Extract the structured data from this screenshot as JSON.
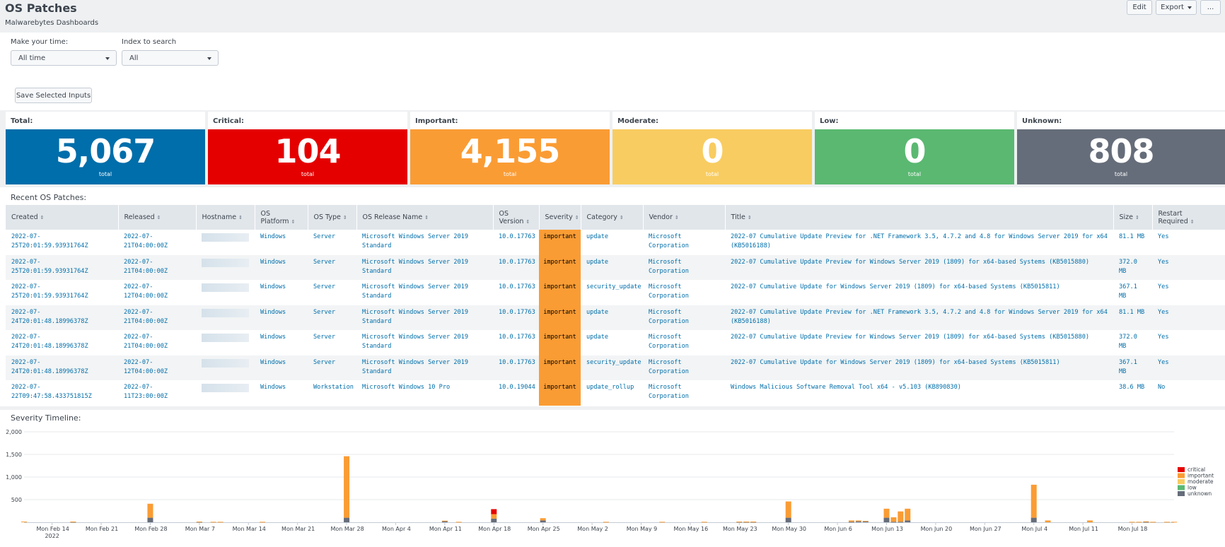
{
  "header": {
    "title": "OS Patches",
    "subtitle": "Malwarebytes Dashboards",
    "edit_label": "Edit",
    "export_label": "Export",
    "more_label": "..."
  },
  "inputs": {
    "time_label": "Make your time:",
    "time_value": "All time",
    "index_label": "Index to search",
    "index_value": "All",
    "save_label": "Save Selected Inputs"
  },
  "singles": [
    {
      "label": "Total:",
      "value": "5,067",
      "unit": "total",
      "color": "#006eaa"
    },
    {
      "label": "Critical:",
      "value": "104",
      "unit": "total",
      "color": "#e50000"
    },
    {
      "label": "Important:",
      "value": "4,155",
      "unit": "total",
      "color": "#fa9c34"
    },
    {
      "label": "Moderate:",
      "value": "0",
      "unit": "total",
      "color": "#f8cc60"
    },
    {
      "label": "Low:",
      "value": "0",
      "unit": "total",
      "color": "#5ab871"
    },
    {
      "label": "Unknown:",
      "value": "808",
      "unit": "total",
      "color": "#666d7a"
    }
  ],
  "table": {
    "title": "Recent OS Patches:",
    "columns": [
      "Created",
      "Released",
      "Hostname",
      "OS Platform",
      "OS Type",
      "OS Release Name",
      "OS Version",
      "Severity",
      "Category",
      "Vendor",
      "Title",
      "Size",
      "Restart Required"
    ],
    "rows": [
      {
        "created": "2022-07-25T20:01:59.93931764Z",
        "released": "2022-07-21T04:00:00Z",
        "platform": "Windows",
        "type": "Server",
        "release_name": "Microsoft Windows Server 2019 Standard",
        "version": "10.0.17763",
        "severity": "important",
        "category": "update",
        "vendor": "Microsoft Corporation",
        "title": "2022-07 Cumulative Update Preview for .NET Framework 3.5, 4.7.2 and 4.8 for Windows Server 2019 for x64 (KB5016188)",
        "size": "81.1 MB",
        "restart": "Yes"
      },
      {
        "created": "2022-07-25T20:01:59.93931764Z",
        "released": "2022-07-21T04:00:00Z",
        "platform": "Windows",
        "type": "Server",
        "release_name": "Microsoft Windows Server 2019 Standard",
        "version": "10.0.17763",
        "severity": "important",
        "category": "update",
        "vendor": "Microsoft Corporation",
        "title": "2022-07 Cumulative Update Preview for Windows Server 2019 (1809) for x64-based Systems (KB5015880)",
        "size": "372.0 MB",
        "restart": "Yes"
      },
      {
        "created": "2022-07-25T20:01:59.93931764Z",
        "released": "2022-07-12T04:00:00Z",
        "platform": "Windows",
        "type": "Server",
        "release_name": "Microsoft Windows Server 2019 Standard",
        "version": "10.0.17763",
        "severity": "important",
        "category": "security_update",
        "vendor": "Microsoft Corporation",
        "title": "2022-07 Cumulative Update for Windows Server 2019 (1809) for x64-based Systems (KB5015811)",
        "size": "367.1 MB",
        "restart": "Yes"
      },
      {
        "created": "2022-07-24T20:01:48.18996378Z",
        "released": "2022-07-21T04:00:00Z",
        "platform": "Windows",
        "type": "Server",
        "release_name": "Microsoft Windows Server 2019 Standard",
        "version": "10.0.17763",
        "severity": "important",
        "category": "update",
        "vendor": "Microsoft Corporation",
        "title": "2022-07 Cumulative Update Preview for .NET Framework 3.5, 4.7.2 and 4.8 for Windows Server 2019 for x64 (KB5016188)",
        "size": "81.1 MB",
        "restart": "Yes"
      },
      {
        "created": "2022-07-24T20:01:48.18996378Z",
        "released": "2022-07-21T04:00:00Z",
        "platform": "Windows",
        "type": "Server",
        "release_name": "Microsoft Windows Server 2019 Standard",
        "version": "10.0.17763",
        "severity": "important",
        "category": "update",
        "vendor": "Microsoft Corporation",
        "title": "2022-07 Cumulative Update Preview for Windows Server 2019 (1809) for x64-based Systems (KB5015880)",
        "size": "372.0 MB",
        "restart": "Yes"
      },
      {
        "created": "2022-07-24T20:01:48.18996378Z",
        "released": "2022-07-12T04:00:00Z",
        "platform": "Windows",
        "type": "Server",
        "release_name": "Microsoft Windows Server 2019 Standard",
        "version": "10.0.17763",
        "severity": "important",
        "category": "security_update",
        "vendor": "Microsoft Corporation",
        "title": "2022-07 Cumulative Update for Windows Server 2019 (1809) for x64-based Systems (KB5015811)",
        "size": "367.1 MB",
        "restart": "Yes"
      },
      {
        "created": "2022-07-22T09:47:58.433751815Z",
        "released": "2022-07-11T23:00:00Z",
        "platform": "Windows",
        "type": "Workstation",
        "release_name": "Microsoft Windows 10 Pro",
        "version": "10.0.19044",
        "severity": "important",
        "category": "update_rollup",
        "vendor": "Microsoft Corporation",
        "title": "Windows Malicious Software Removal Tool x64 - v5.103 (KB890830)",
        "size": "38.6 MB",
        "restart": "No"
      }
    ]
  },
  "chart_data": {
    "type": "bar",
    "stacked": true,
    "title": "Severity Timeline:",
    "ylim": [
      0,
      2000
    ],
    "yticks": [
      {
        "v": 500,
        "label": "500"
      },
      {
        "v": 1000,
        "label": "1,000"
      },
      {
        "v": 1500,
        "label": "1,500"
      },
      {
        "v": 2000,
        "label": "2,000"
      }
    ],
    "xlim": [
      "2022-02-10",
      "2022-07-24"
    ],
    "xticks": [
      {
        "date": "2022-02-14",
        "label": "Mon Feb 14",
        "label2": "2022"
      },
      {
        "date": "2022-02-21",
        "label": "Mon Feb 21"
      },
      {
        "date": "2022-02-28",
        "label": "Mon Feb 28"
      },
      {
        "date": "2022-03-07",
        "label": "Mon Mar 7"
      },
      {
        "date": "2022-03-14",
        "label": "Mon Mar 14"
      },
      {
        "date": "2022-03-21",
        "label": "Mon Mar 21"
      },
      {
        "date": "2022-03-28",
        "label": "Mon Mar 28"
      },
      {
        "date": "2022-04-04",
        "label": "Mon Apr 4"
      },
      {
        "date": "2022-04-11",
        "label": "Mon Apr 11"
      },
      {
        "date": "2022-04-18",
        "label": "Mon Apr 18"
      },
      {
        "date": "2022-04-25",
        "label": "Mon Apr 25"
      },
      {
        "date": "2022-05-02",
        "label": "Mon May 2"
      },
      {
        "date": "2022-05-09",
        "label": "Mon May 9"
      },
      {
        "date": "2022-05-16",
        "label": "Mon May 16"
      },
      {
        "date": "2022-05-23",
        "label": "Mon May 23"
      },
      {
        "date": "2022-05-30",
        "label": "Mon May 30"
      },
      {
        "date": "2022-06-06",
        "label": "Mon Jun 6"
      },
      {
        "date": "2022-06-13",
        "label": "Mon Jun 13"
      },
      {
        "date": "2022-06-20",
        "label": "Mon Jun 20"
      },
      {
        "date": "2022-06-27",
        "label": "Mon Jun 27"
      },
      {
        "date": "2022-07-04",
        "label": "Mon Jul 4"
      },
      {
        "date": "2022-07-11",
        "label": "Mon Jul 11"
      },
      {
        "date": "2022-07-18",
        "label": "Mon Jul 18"
      }
    ],
    "legend": [
      {
        "name": "critical",
        "color": "#e50000"
      },
      {
        "name": "important",
        "color": "#fa9c34"
      },
      {
        "name": "moderate",
        "color": "#f8cc60"
      },
      {
        "name": "low",
        "color": "#5ab871"
      },
      {
        "name": "unknown",
        "color": "#666d7a"
      }
    ],
    "legend_position": "right",
    "bars": [
      {
        "date": "2022-02-10",
        "critical": 0,
        "important": 15,
        "moderate": 0,
        "low": 0,
        "unknown": 0
      },
      {
        "date": "2022-02-17",
        "critical": 0,
        "important": 5,
        "moderate": 0,
        "low": 0,
        "unknown": 10
      },
      {
        "date": "2022-02-28",
        "critical": 0,
        "important": 310,
        "moderate": 0,
        "low": 0,
        "unknown": 100
      },
      {
        "date": "2022-03-07",
        "critical": 0,
        "important": 5,
        "moderate": 0,
        "low": 0,
        "unknown": 10
      },
      {
        "date": "2022-03-09",
        "critical": 0,
        "important": 10,
        "moderate": 0,
        "low": 0,
        "unknown": 0
      },
      {
        "date": "2022-03-10",
        "critical": 0,
        "important": 10,
        "moderate": 0,
        "low": 0,
        "unknown": 0
      },
      {
        "date": "2022-03-16",
        "critical": 0,
        "important": 10,
        "moderate": 0,
        "low": 0,
        "unknown": 0
      },
      {
        "date": "2022-03-28",
        "critical": 0,
        "important": 1360,
        "moderate": 0,
        "low": 0,
        "unknown": 100
      },
      {
        "date": "2022-04-11",
        "critical": 0,
        "important": 5,
        "moderate": 0,
        "low": 0,
        "unknown": 30
      },
      {
        "date": "2022-04-13",
        "critical": 0,
        "important": 10,
        "moderate": 0,
        "low": 0,
        "unknown": 0
      },
      {
        "date": "2022-04-18",
        "critical": 110,
        "important": 100,
        "moderate": 0,
        "low": 0,
        "unknown": 80
      },
      {
        "date": "2022-04-25",
        "critical": 0,
        "important": 50,
        "moderate": 0,
        "low": 0,
        "unknown": 40
      },
      {
        "date": "2022-05-04",
        "critical": 0,
        "important": 10,
        "moderate": 0,
        "low": 0,
        "unknown": 0
      },
      {
        "date": "2022-05-12",
        "critical": 0,
        "important": 10,
        "moderate": 0,
        "low": 0,
        "unknown": 0
      },
      {
        "date": "2022-05-18",
        "critical": 0,
        "important": 10,
        "moderate": 0,
        "low": 0,
        "unknown": 0
      },
      {
        "date": "2022-05-23",
        "critical": 0,
        "important": 5,
        "moderate": 0,
        "low": 0,
        "unknown": 10
      },
      {
        "date": "2022-05-24",
        "critical": 0,
        "important": 5,
        "moderate": 0,
        "low": 0,
        "unknown": 10
      },
      {
        "date": "2022-05-25",
        "critical": 0,
        "important": 5,
        "moderate": 0,
        "low": 0,
        "unknown": 10
      },
      {
        "date": "2022-05-30",
        "critical": 0,
        "important": 360,
        "moderate": 0,
        "low": 0,
        "unknown": 100
      },
      {
        "date": "2022-06-08",
        "critical": 0,
        "important": 30,
        "moderate": 0,
        "low": 0,
        "unknown": 10
      },
      {
        "date": "2022-06-09",
        "critical": 0,
        "important": 20,
        "moderate": 0,
        "low": 0,
        "unknown": 20
      },
      {
        "date": "2022-06-10",
        "critical": 0,
        "important": 5,
        "moderate": 0,
        "low": 0,
        "unknown": 25
      },
      {
        "date": "2022-06-13",
        "critical": 0,
        "important": 200,
        "moderate": 0,
        "low": 0,
        "unknown": 100
      },
      {
        "date": "2022-06-14",
        "critical": 0,
        "important": 100,
        "moderate": 0,
        "low": 0,
        "unknown": 10
      },
      {
        "date": "2022-06-15",
        "critical": 0,
        "important": 230,
        "moderate": 0,
        "low": 0,
        "unknown": 10
      },
      {
        "date": "2022-06-16",
        "critical": 0,
        "important": 260,
        "moderate": 0,
        "low": 0,
        "unknown": 40
      },
      {
        "date": "2022-07-04",
        "critical": 0,
        "important": 730,
        "moderate": 0,
        "low": 0,
        "unknown": 100
      },
      {
        "date": "2022-07-06",
        "critical": 0,
        "important": 40,
        "moderate": 0,
        "low": 0,
        "unknown": 0
      },
      {
        "date": "2022-07-12",
        "critical": 0,
        "important": 40,
        "moderate": 0,
        "low": 0,
        "unknown": 0
      },
      {
        "date": "2022-07-18",
        "critical": 0,
        "important": 10,
        "moderate": 0,
        "low": 0,
        "unknown": 0
      },
      {
        "date": "2022-07-19",
        "critical": 0,
        "important": 10,
        "moderate": 0,
        "low": 0,
        "unknown": 0
      },
      {
        "date": "2022-07-20",
        "critical": 0,
        "important": 10,
        "moderate": 0,
        "low": 0,
        "unknown": 10
      },
      {
        "date": "2022-07-21",
        "critical": 0,
        "important": 10,
        "moderate": 0,
        "low": 0,
        "unknown": 0
      },
      {
        "date": "2022-07-23",
        "critical": 0,
        "important": 10,
        "moderate": 0,
        "low": 0,
        "unknown": 0
      },
      {
        "date": "2022-07-24",
        "critical": 0,
        "important": 10,
        "moderate": 0,
        "low": 0,
        "unknown": 0
      }
    ]
  }
}
